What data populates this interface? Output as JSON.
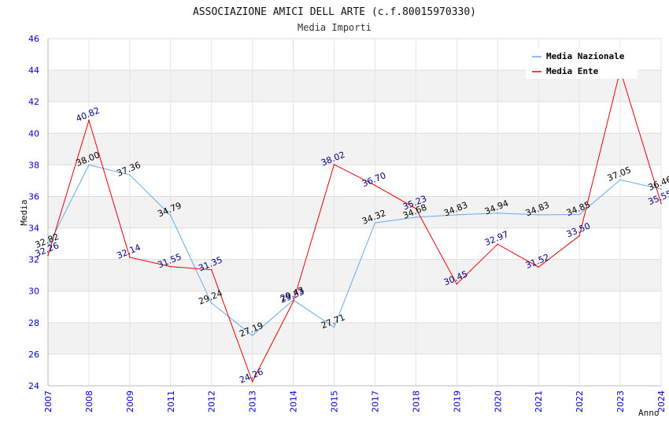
{
  "chart_data": {
    "type": "line",
    "title": "ASSOCIAZIONE AMICI DELL ARTE (c.f.80015970330)",
    "subtitle": "Media Importi",
    "xlabel": "Anno",
    "ylabel": "Media",
    "ylim": [
      24,
      46
    ],
    "yticks": [
      "24",
      "26",
      "28",
      "30",
      "32",
      "34",
      "36",
      "38",
      "40",
      "42",
      "44",
      "46"
    ],
    "categories": [
      "2007",
      "2008",
      "2009",
      "2011",
      "2012",
      "2013",
      "2014",
      "2015",
      "2017",
      "2018",
      "2019",
      "2020",
      "2021",
      "2022",
      "2023",
      "2024"
    ],
    "legend_position": "top-right",
    "series": [
      {
        "name": "Media Nazionale",
        "color": "#66aaee",
        "label_color": "#000000",
        "values": [
          32.82,
          38.0,
          37.36,
          34.79,
          29.24,
          27.19,
          29.43,
          27.71,
          34.32,
          34.68,
          34.83,
          34.94,
          34.83,
          34.85,
          37.05,
          36.46
        ],
        "labels": [
          "32.82",
          "38.00",
          "37.36",
          "34.79",
          "29.24",
          "27.19",
          "29.43",
          "27.71",
          "34.32",
          "34.68",
          "34.83",
          "34.94",
          "34.83",
          "34.85",
          "37.05",
          "36.46"
        ]
      },
      {
        "name": "Media Ente",
        "color": "#ee0000",
        "label_color": "#000080",
        "values": [
          32.26,
          40.82,
          32.14,
          31.55,
          31.35,
          24.26,
          29.33,
          38.02,
          36.7,
          35.23,
          30.45,
          32.97,
          31.52,
          33.5,
          44.0,
          35.55
        ],
        "labels": [
          "32.26",
          "40.82",
          "32.14",
          "31.55",
          "31.35",
          "24.26",
          "29.33",
          "38.02",
          "36.70",
          "35.23",
          "30.45",
          "32.97",
          "31.52",
          "33.50",
          "",
          "35.55"
        ]
      }
    ]
  }
}
